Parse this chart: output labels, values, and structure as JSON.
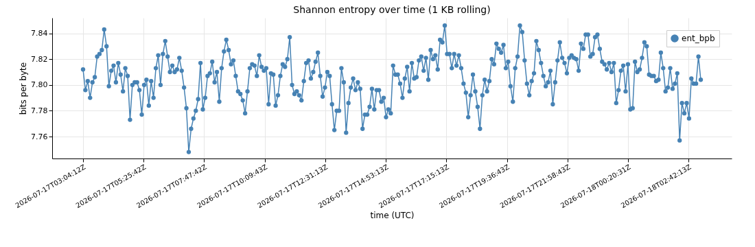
{
  "chart_data": {
    "type": "line",
    "title": "Shannon entropy over time (1 KB rolling)",
    "xlabel": "time (UTC)",
    "ylabel": "bits per byte",
    "x": [
      "2026-07-17T03:04:12",
      "2026-07-17T03:09:42",
      "2026-07-17T03:15:12",
      "2026-07-17T03:20:42",
      "2026-07-17T03:26:12",
      "2026-07-17T03:31:42",
      "2026-07-17T03:37:12",
      "2026-07-17T03:42:42",
      "2026-07-17T03:48:12",
      "2026-07-17T03:53:42",
      "2026-07-17T03:59:12",
      "2026-07-17T04:04:42",
      "2026-07-17T04:10:12",
      "2026-07-17T04:15:42",
      "2026-07-17T04:21:12",
      "2026-07-17T04:26:42",
      "2026-07-17T04:32:12",
      "2026-07-17T04:37:42",
      "2026-07-17T04:43:12",
      "2026-07-17T04:48:42",
      "2026-07-17T04:54:12",
      "2026-07-17T04:59:42",
      "2026-07-17T05:05:12",
      "2026-07-17T05:10:42",
      "2026-07-17T05:16:12",
      "2026-07-17T05:21:42",
      "2026-07-17T05:27:12",
      "2026-07-17T05:32:42",
      "2026-07-17T05:38:12",
      "2026-07-17T05:43:42",
      "2026-07-17T05:49:12",
      "2026-07-17T05:54:42",
      "2026-07-17T06:00:12",
      "2026-07-17T06:05:42",
      "2026-07-17T06:11:12",
      "2026-07-17T06:16:42",
      "2026-07-17T06:22:12",
      "2026-07-17T06:27:42",
      "2026-07-17T06:33:12",
      "2026-07-17T06:38:42",
      "2026-07-17T06:44:12",
      "2026-07-17T06:49:42",
      "2026-07-17T06:55:12",
      "2026-07-17T07:00:42",
      "2026-07-17T07:06:12",
      "2026-07-17T07:11:42",
      "2026-07-17T07:17:12",
      "2026-07-17T07:22:42",
      "2026-07-17T07:28:12",
      "2026-07-17T07:33:42",
      "2026-07-17T07:39:12",
      "2026-07-17T07:44:42",
      "2026-07-17T07:50:12",
      "2026-07-17T07:55:42",
      "2026-07-17T08:01:12",
      "2026-07-17T08:06:42",
      "2026-07-17T08:12:12",
      "2026-07-17T08:17:42",
      "2026-07-17T08:23:12",
      "2026-07-17T08:28:42",
      "2026-07-17T08:34:12",
      "2026-07-17T08:39:42",
      "2026-07-17T08:45:12",
      "2026-07-17T08:50:42",
      "2026-07-17T08:56:12",
      "2026-07-17T09:01:42",
      "2026-07-17T09:07:12",
      "2026-07-17T09:12:42",
      "2026-07-17T09:18:12",
      "2026-07-17T09:23:42",
      "2026-07-17T09:29:12",
      "2026-07-17T09:34:42",
      "2026-07-17T09:40:12",
      "2026-07-17T09:45:42",
      "2026-07-17T09:51:12",
      "2026-07-17T09:56:42",
      "2026-07-17T10:02:12",
      "2026-07-17T10:07:42",
      "2026-07-17T10:13:12",
      "2026-07-17T10:18:42",
      "2026-07-17T10:24:12",
      "2026-07-17T10:29:42",
      "2026-07-17T10:35:12",
      "2026-07-17T10:40:42",
      "2026-07-17T10:46:12",
      "2026-07-17T10:51:42",
      "2026-07-17T10:57:12",
      "2026-07-17T11:02:42",
      "2026-07-17T11:08:12",
      "2026-07-17T11:13:42",
      "2026-07-17T11:19:12",
      "2026-07-17T11:24:42",
      "2026-07-17T11:30:12",
      "2026-07-17T11:35:42",
      "2026-07-17T11:41:12",
      "2026-07-17T11:46:42",
      "2026-07-17T11:52:12",
      "2026-07-17T11:57:42",
      "2026-07-17T12:03:12",
      "2026-07-17T12:08:42",
      "2026-07-17T12:14:12",
      "2026-07-17T12:19:42",
      "2026-07-17T12:25:12",
      "2026-07-17T12:30:42",
      "2026-07-17T12:36:12",
      "2026-07-17T12:41:42",
      "2026-07-17T12:47:12",
      "2026-07-17T12:52:42",
      "2026-07-17T12:58:12",
      "2026-07-17T13:03:42",
      "2026-07-17T13:09:12",
      "2026-07-17T13:14:42",
      "2026-07-17T13:20:12",
      "2026-07-17T13:25:42",
      "2026-07-17T13:31:12",
      "2026-07-17T13:36:42",
      "2026-07-17T13:42:12",
      "2026-07-17T13:47:42",
      "2026-07-17T13:53:12",
      "2026-07-17T13:58:42",
      "2026-07-17T14:04:12",
      "2026-07-17T14:09:42",
      "2026-07-17T14:15:12",
      "2026-07-17T14:20:42",
      "2026-07-17T14:26:12",
      "2026-07-17T14:31:42",
      "2026-07-17T14:37:12",
      "2026-07-17T14:42:42",
      "2026-07-17T14:48:12",
      "2026-07-17T14:53:42",
      "2026-07-17T14:59:12",
      "2026-07-17T15:04:42",
      "2026-07-17T15:10:12",
      "2026-07-17T15:15:42",
      "2026-07-17T15:21:12",
      "2026-07-17T15:26:42",
      "2026-07-17T15:32:12",
      "2026-07-17T15:37:42",
      "2026-07-17T15:43:12",
      "2026-07-17T15:48:42",
      "2026-07-17T15:54:12",
      "2026-07-17T15:59:42",
      "2026-07-17T16:05:12",
      "2026-07-17T16:10:42",
      "2026-07-17T16:16:12",
      "2026-07-17T16:21:42",
      "2026-07-17T16:27:12",
      "2026-07-17T16:32:42",
      "2026-07-17T16:38:12",
      "2026-07-17T16:43:42",
      "2026-07-17T16:49:12",
      "2026-07-17T16:54:42",
      "2026-07-17T17:00:12",
      "2026-07-17T17:05:42",
      "2026-07-17T17:11:12",
      "2026-07-17T17:16:42",
      "2026-07-17T17:22:12",
      "2026-07-17T17:27:42",
      "2026-07-17T17:33:12",
      "2026-07-17T17:38:42",
      "2026-07-17T17:44:12",
      "2026-07-17T17:49:42",
      "2026-07-17T17:55:12",
      "2026-07-17T18:00:42",
      "2026-07-17T18:06:12",
      "2026-07-17T18:11:42",
      "2026-07-17T18:17:12",
      "2026-07-17T18:22:42",
      "2026-07-17T18:28:12",
      "2026-07-17T18:33:42",
      "2026-07-17T18:39:12",
      "2026-07-17T18:44:42",
      "2026-07-17T18:50:12",
      "2026-07-17T18:55:42",
      "2026-07-17T19:01:12",
      "2026-07-17T19:06:42",
      "2026-07-17T19:12:12",
      "2026-07-17T19:17:42",
      "2026-07-17T19:23:12",
      "2026-07-17T19:28:42",
      "2026-07-17T19:34:12",
      "2026-07-17T19:39:42",
      "2026-07-17T19:45:12",
      "2026-07-17T19:50:42",
      "2026-07-17T19:56:12",
      "2026-07-17T20:01:42",
      "2026-07-17T20:07:12",
      "2026-07-17T20:12:42",
      "2026-07-17T20:18:12",
      "2026-07-17T20:23:42",
      "2026-07-17T20:29:12",
      "2026-07-17T20:34:42",
      "2026-07-17T20:40:12",
      "2026-07-17T20:45:42",
      "2026-07-17T20:51:12",
      "2026-07-17T20:56:42",
      "2026-07-17T21:02:12",
      "2026-07-17T21:07:42",
      "2026-07-17T21:13:12",
      "2026-07-17T21:18:42",
      "2026-07-17T21:24:12",
      "2026-07-17T21:29:42",
      "2026-07-17T21:35:12",
      "2026-07-17T21:40:42",
      "2026-07-17T21:46:12",
      "2026-07-17T21:51:42",
      "2026-07-17T21:57:12",
      "2026-07-17T22:02:42",
      "2026-07-17T22:08:12",
      "2026-07-17T22:13:42",
      "2026-07-17T22:19:12",
      "2026-07-17T22:24:42",
      "2026-07-17T22:30:12",
      "2026-07-17T22:35:42",
      "2026-07-17T22:41:12",
      "2026-07-17T22:46:42",
      "2026-07-17T22:52:12",
      "2026-07-17T22:57:42",
      "2026-07-17T23:03:12",
      "2026-07-17T23:08:42",
      "2026-07-17T23:14:12",
      "2026-07-17T23:19:42",
      "2026-07-17T23:25:12",
      "2026-07-17T23:30:42",
      "2026-07-17T23:36:12",
      "2026-07-17T23:41:42",
      "2026-07-17T23:47:12",
      "2026-07-17T23:52:42",
      "2026-07-17T23:58:12",
      "2026-07-18T00:03:42",
      "2026-07-18T00:09:12",
      "2026-07-18T00:14:42",
      "2026-07-18T00:20:12",
      "2026-07-18T00:25:42",
      "2026-07-18T00:31:12",
      "2026-07-18T00:36:42",
      "2026-07-18T00:42:12",
      "2026-07-18T00:47:42",
      "2026-07-18T00:53:12",
      "2026-07-18T00:58:42",
      "2026-07-18T01:04:12",
      "2026-07-18T01:09:42",
      "2026-07-18T01:15:12",
      "2026-07-18T01:20:42",
      "2026-07-18T01:26:12",
      "2026-07-18T01:31:42",
      "2026-07-18T01:37:12",
      "2026-07-18T01:42:42",
      "2026-07-18T01:48:12",
      "2026-07-18T01:53:42",
      "2026-07-18T01:59:12",
      "2026-07-18T02:04:42",
      "2026-07-18T02:10:12",
      "2026-07-18T02:15:42",
      "2026-07-18T02:21:12",
      "2026-07-18T02:26:42",
      "2026-07-18T02:32:12",
      "2026-07-18T02:37:42",
      "2026-07-18T02:43:12",
      "2026-07-18T02:48:42",
      "2026-07-18T02:54:12",
      "2026-07-18T02:59:42",
      "2026-07-18T03:05:12",
      "2026-07-18T03:10:42"
    ],
    "series": [
      {
        "name": "ent_bpb",
        "color": "#4682b4",
        "values": [
          7.812,
          7.796,
          7.803,
          7.79,
          7.802,
          7.806,
          7.822,
          7.824,
          7.827,
          7.843,
          7.83,
          7.799,
          7.811,
          7.815,
          7.802,
          7.817,
          7.808,
          7.795,
          7.813,
          7.807,
          7.773,
          7.8,
          7.802,
          7.802,
          7.796,
          7.777,
          7.8,
          7.804,
          7.784,
          7.803,
          7.79,
          7.813,
          7.823,
          7.8,
          7.824,
          7.834,
          7.822,
          7.81,
          7.815,
          7.81,
          7.812,
          7.821,
          7.811,
          7.798,
          7.782,
          7.748,
          7.766,
          7.774,
          7.78,
          7.789,
          7.817,
          7.781,
          7.79,
          7.807,
          7.809,
          7.818,
          7.802,
          7.81,
          7.787,
          7.813,
          7.826,
          7.835,
          7.827,
          7.816,
          7.819,
          7.807,
          7.795,
          7.793,
          7.788,
          7.778,
          7.795,
          7.813,
          7.816,
          7.815,
          7.807,
          7.823,
          7.814,
          7.811,
          7.813,
          7.785,
          7.809,
          7.808,
          7.784,
          7.792,
          7.807,
          7.816,
          7.814,
          7.82,
          7.837,
          7.8,
          7.793,
          7.795,
          7.792,
          7.788,
          7.803,
          7.817,
          7.819,
          7.805,
          7.81,
          7.818,
          7.825,
          7.807,
          7.791,
          7.798,
          7.81,
          7.807,
          7.785,
          7.765,
          7.78,
          7.78,
          7.813,
          7.802,
          7.763,
          7.786,
          7.798,
          7.805,
          7.796,
          7.802,
          7.797,
          7.766,
          7.777,
          7.777,
          7.783,
          7.797,
          7.781,
          7.796,
          7.796,
          7.787,
          7.79,
          7.775,
          7.781,
          7.778,
          7.815,
          7.808,
          7.808,
          7.801,
          7.79,
          7.805,
          7.814,
          7.795,
          7.817,
          7.805,
          7.806,
          7.819,
          7.822,
          7.811,
          7.821,
          7.804,
          7.827,
          7.82,
          7.823,
          7.812,
          7.835,
          7.833,
          7.846,
          7.824,
          7.824,
          7.813,
          7.824,
          7.815,
          7.823,
          7.813,
          7.801,
          7.794,
          7.775,
          7.792,
          7.808,
          7.795,
          7.783,
          7.766,
          7.792,
          7.804,
          7.795,
          7.803,
          7.82,
          7.816,
          7.832,
          7.828,
          7.825,
          7.831,
          7.813,
          7.818,
          7.799,
          7.787,
          7.813,
          7.822,
          7.846,
          7.841,
          7.819,
          7.801,
          7.792,
          7.803,
          7.809,
          7.834,
          7.827,
          7.817,
          7.807,
          7.799,
          7.802,
          7.811,
          7.785,
          7.802,
          7.819,
          7.833,
          7.821,
          7.817,
          7.809,
          7.821,
          7.823,
          7.821,
          7.82,
          7.811,
          7.832,
          7.828,
          7.839,
          7.839,
          7.822,
          7.824,
          7.837,
          7.839,
          7.828,
          7.818,
          7.816,
          7.812,
          7.817,
          7.81,
          7.817,
          7.786,
          7.796,
          7.811,
          7.815,
          7.795,
          7.816,
          7.781,
          7.782,
          7.818,
          7.81,
          7.812,
          7.821,
          7.833,
          7.83,
          7.808,
          7.807,
          7.807,
          7.803,
          7.804,
          7.825,
          7.813,
          7.795,
          7.798,
          7.813,
          7.797,
          7.801,
          7.809,
          7.757,
          7.786,
          7.778,
          7.786,
          7.774,
          7.805,
          7.801,
          7.801,
          7.822,
          7.804
        ]
      }
    ],
    "xlim": [
      "2026-07-17T01:51:52",
      "2026-07-18T04:23:02"
    ],
    "xticks": [
      {
        "value": "2026-07-17T03:04:12",
        "label": "2026-07-17T03:04:12Z"
      },
      {
        "value": "2026-07-17T05:25:42",
        "label": "2026-07-17T05:25:42Z"
      },
      {
        "value": "2026-07-17T07:47:42",
        "label": "2026-07-17T07:47:42Z"
      },
      {
        "value": "2026-07-17T10:09:43",
        "label": "2026-07-17T10:09:43Z"
      },
      {
        "value": "2026-07-17T12:31:13",
        "label": "2026-07-17T12:31:13Z"
      },
      {
        "value": "2026-07-17T14:53:13",
        "label": "2026-07-17T14:53:13Z"
      },
      {
        "value": "2026-07-17T17:15:13",
        "label": "2026-07-17T17:15:13Z"
      },
      {
        "value": "2026-07-17T19:36:43",
        "label": "2026-07-17T19:36:43Z"
      },
      {
        "value": "2026-07-17T21:58:43",
        "label": "2026-07-17T21:58:43Z"
      },
      {
        "value": "2026-07-18T00:20:31",
        "label": "2026-07-18T00:20:31Z"
      },
      {
        "value": "2026-07-18T02:42:13",
        "label": "2026-07-18T02:42:13Z"
      }
    ],
    "ylim": [
      7.743,
      7.852
    ],
    "yticks": [
      7.76,
      7.78,
      {
        "value": 7.8,
        "label": "7.80"
      },
      7.82,
      7.84
    ],
    "grid": true,
    "legend": "top right",
    "marker": "circle",
    "line_style": "solid"
  }
}
